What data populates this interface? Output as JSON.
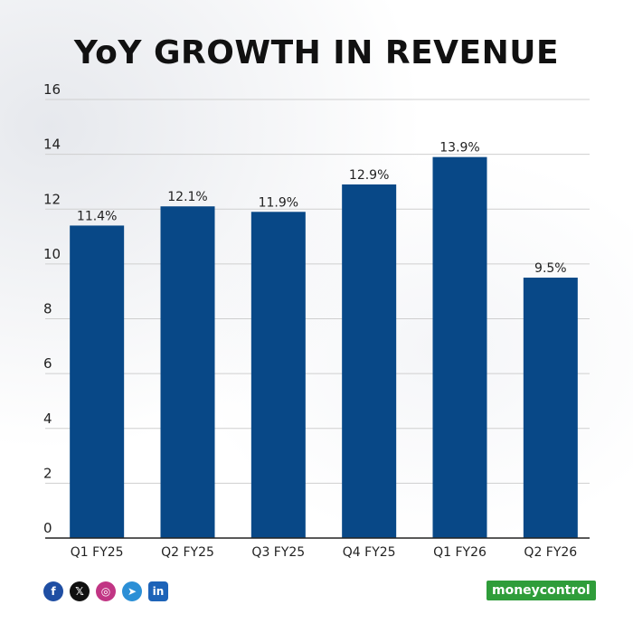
{
  "chart_data": {
    "type": "bar",
    "title": "YoY GROWTH IN REVENUE",
    "xlabel": "",
    "ylabel": "",
    "categories": [
      "Q1 FY25",
      "Q2 FY25",
      "Q3 FY25",
      "Q4 FY25",
      "Q1 FY26",
      "Q2 FY26"
    ],
    "values": [
      11.4,
      12.1,
      11.9,
      12.9,
      13.9,
      9.5
    ],
    "data_labels": [
      "11.4%",
      "12.1%",
      "11.9%",
      "12.9%",
      "13.9%",
      "9.5%"
    ],
    "ylim": [
      0,
      16
    ],
    "yticks": [
      0,
      2,
      4,
      6,
      8,
      10,
      12,
      14,
      16
    ],
    "grid": true,
    "legend": "none",
    "bar_color": "#084887"
  },
  "footer": {
    "icons": [
      "facebook-icon",
      "x-icon",
      "instagram-icon",
      "telegram-icon",
      "linkedin-icon"
    ],
    "icon_glyphs": [
      "f",
      "𝕏",
      "◎",
      "➤",
      "in"
    ],
    "brand": "moneycontrol",
    "brand_color": "#2f9d3a"
  }
}
